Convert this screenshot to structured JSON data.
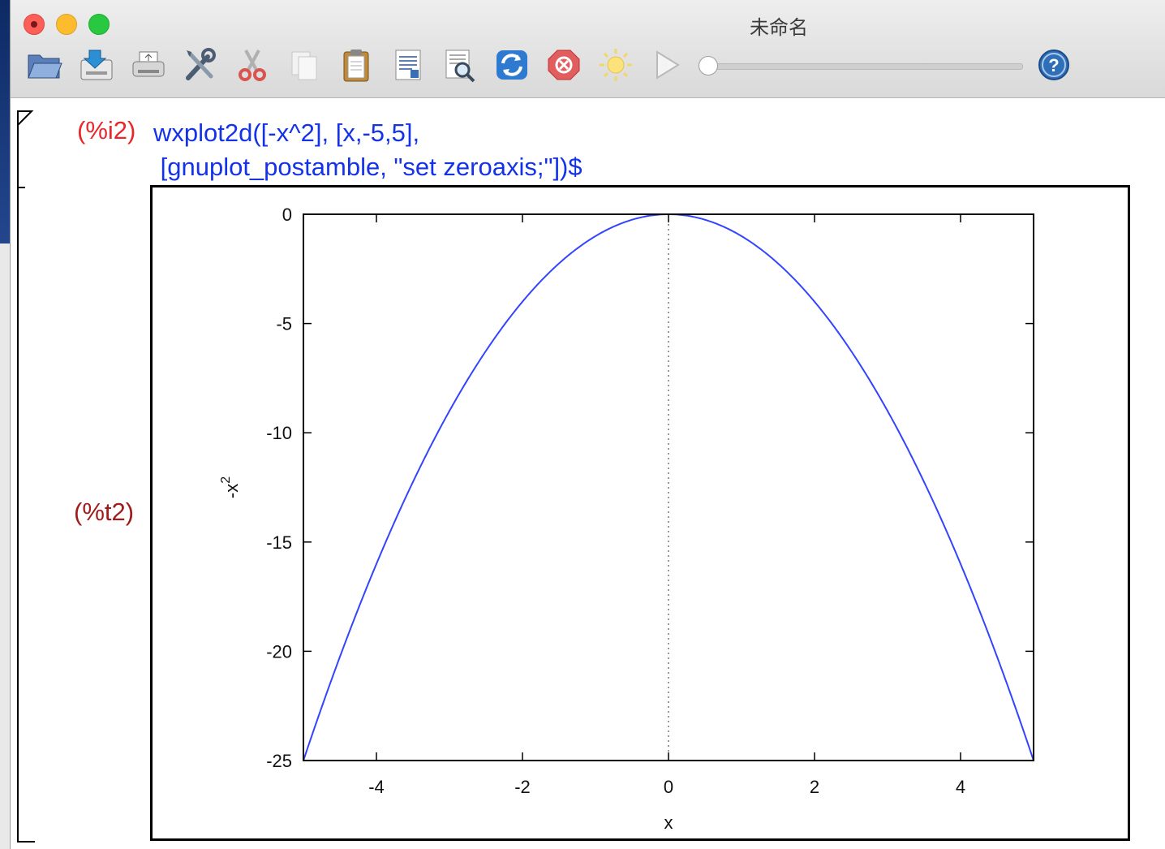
{
  "window": {
    "title": "未命名"
  },
  "toolbar": {
    "buttons": [
      {
        "name": "open"
      },
      {
        "name": "save"
      },
      {
        "name": "print"
      },
      {
        "name": "preferences"
      },
      {
        "name": "cut"
      },
      {
        "name": "copy"
      },
      {
        "name": "paste"
      },
      {
        "name": "select-all"
      },
      {
        "name": "find"
      },
      {
        "name": "refresh"
      },
      {
        "name": "interrupt"
      },
      {
        "name": "animation"
      },
      {
        "name": "play"
      }
    ],
    "slider_value": 0
  },
  "cell": {
    "input_label": "(%i2)",
    "input_line1": "wxplot2d([-x^2], [x,-5,5],",
    "input_line2": " [gnuplot_postamble, \"set zeroaxis;\"])$",
    "output_label": "(%t2)"
  },
  "chart_data": {
    "type": "line",
    "function": "-x^2",
    "x_range": [
      -5,
      5
    ],
    "ylim": [
      -25,
      0
    ],
    "xlabel": "x",
    "ylabel_base": "-x",
    "ylabel_sup": "2",
    "x_ticks": [
      "-4",
      "-2",
      "0",
      "2",
      "4"
    ],
    "x_tick_values": [
      -4,
      -2,
      0,
      2,
      4
    ],
    "y_ticks": [
      "0",
      "-5",
      "-10",
      "-15",
      "-20",
      "-25"
    ],
    "y_tick_values": [
      0,
      -5,
      -10,
      -15,
      -20,
      -25
    ],
    "zero_axis": true,
    "series": [
      {
        "color": "#3344ff",
        "x": [
          -5,
          -4.5,
          -4,
          -3.5,
          -3,
          -2.5,
          -2,
          -1.5,
          -1,
          -0.5,
          0,
          0.5,
          1,
          1.5,
          2,
          2.5,
          3,
          3.5,
          4,
          4.5,
          5
        ],
        "y": [
          -25,
          -20.25,
          -16,
          -12.25,
          -9,
          -6.25,
          -4,
          -2.25,
          -1,
          -0.25,
          0,
          -0.25,
          -1,
          -2.25,
          -4,
          -6.25,
          -9,
          -12.25,
          -16,
          -20.25,
          -25
        ]
      }
    ]
  }
}
